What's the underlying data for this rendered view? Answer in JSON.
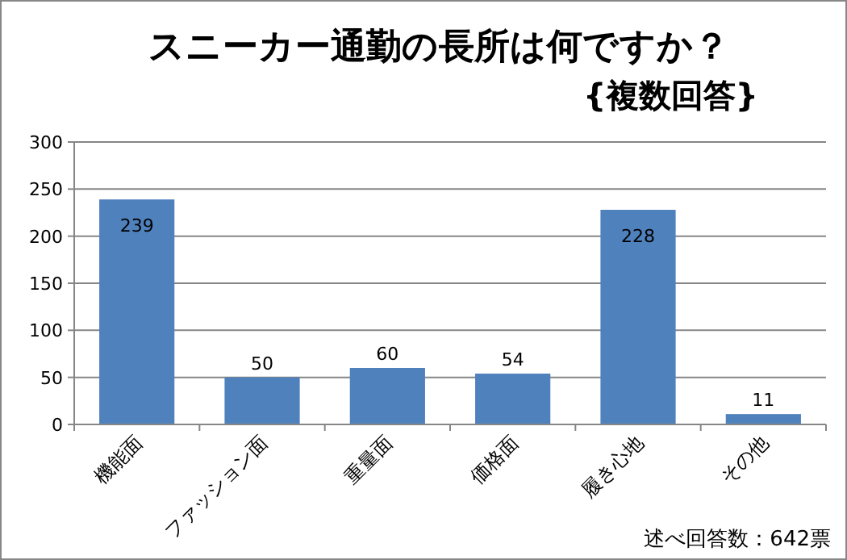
{
  "chart_data": {
    "type": "bar",
    "title": "スニーカー通勤の長所は何ですか？",
    "subtitle": "{複数回答}",
    "categories": [
      "機能面",
      "ファッション面",
      "重量面",
      "価格面",
      "履き心地",
      "その他"
    ],
    "values": [
      239,
      50,
      60,
      54,
      228,
      11
    ],
    "color": "#4f81bd",
    "ylim": [
      0,
      300
    ],
    "yticks": [
      0,
      50,
      100,
      150,
      200,
      250,
      300
    ],
    "grid": "y",
    "data_labels": true,
    "annotations": [
      "述べ回答数：642票"
    ]
  }
}
